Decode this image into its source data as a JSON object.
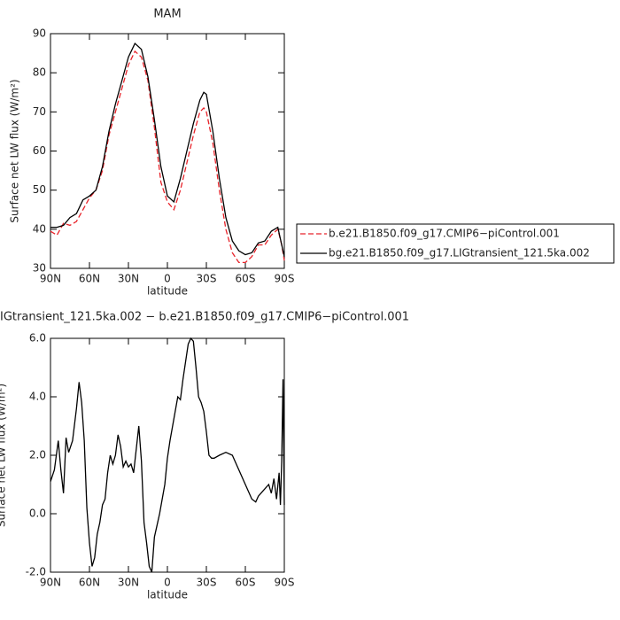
{
  "chart_data": [
    {
      "type": "line",
      "title": "MAM",
      "xlabel": "latitude",
      "ylabel": "Surface net LW flux (W/m²)",
      "xlim": [
        90,
        -90
      ],
      "xticks": [
        {
          "value": 90,
          "label": "90N"
        },
        {
          "value": 60,
          "label": "60N"
        },
        {
          "value": 30,
          "label": "30N"
        },
        0,
        {
          "value": -30,
          "label": "30S"
        },
        {
          "value": -60,
          "label": "60S"
        },
        {
          "value": -90,
          "label": "90S"
        }
      ],
      "ylim": [
        30,
        90
      ],
      "yticks": [
        30,
        40,
        50,
        60,
        70,
        80,
        90
      ],
      "legend": "right",
      "x": [
        90,
        85,
        80,
        75,
        70,
        65,
        60,
        55,
        50,
        45,
        40,
        35,
        30,
        25,
        20,
        15,
        10,
        5,
        0,
        -5,
        -10,
        -15,
        -20,
        -25,
        -28,
        -30,
        -35,
        -40,
        -45,
        -50,
        -55,
        -60,
        -65,
        -70,
        -75,
        -80,
        -85,
        -88,
        -90
      ],
      "series": [
        {
          "name": "b.e21.B1850.f09_g17.CMIP6−piControl.001",
          "color": "#e8232a",
          "dash": "dashed",
          "values": [
            39.5,
            38.5,
            41.5,
            41,
            42,
            45,
            48,
            50,
            55,
            64,
            70,
            76,
            82,
            85.5,
            84,
            78,
            66,
            52,
            47,
            45,
            50,
            57,
            64,
            70,
            71,
            70,
            62,
            50,
            40,
            34,
            31.5,
            31.5,
            33,
            36,
            36,
            38.5,
            40,
            36,
            32
          ]
        },
        {
          "name": "bg.e21.B1850.f09_g17.LIGtransient_121.5ka.002",
          "color": "#000000",
          "dash": "solid",
          "values": [
            40.5,
            40.5,
            41,
            43,
            44,
            47.5,
            48.5,
            50,
            56,
            65,
            72,
            78,
            84,
            87.5,
            86,
            79,
            68,
            56,
            48.5,
            47,
            53,
            60,
            67,
            73,
            75,
            74.5,
            65,
            53,
            43,
            37,
            34.5,
            33.5,
            34,
            36.5,
            37,
            39.5,
            40.5,
            36,
            33
          ]
        }
      ]
    },
    {
      "type": "line",
      "title": "IGtransient_121.5ka.002 − b.e21.B1850.f09_g17.CMIP6−piControl.001",
      "xlabel": "latitude",
      "ylabel": "Surface net LW flux (W/m²)",
      "xlim": [
        90,
        -90
      ],
      "xticks": [
        {
          "value": 90,
          "label": "90N"
        },
        {
          "value": 60,
          "label": "60N"
        },
        {
          "value": 30,
          "label": "30N"
        },
        0,
        {
          "value": -30,
          "label": "30S"
        },
        {
          "value": -60,
          "label": "60S"
        },
        {
          "value": -90,
          "label": "90S"
        }
      ],
      "ylim": [
        -2,
        6
      ],
      "yticks": [
        {
          "value": -2,
          "label": "-2.0"
        },
        {
          "value": 0,
          "label": "0.0"
        },
        {
          "value": 2,
          "label": "2.0"
        },
        {
          "value": 4,
          "label": "4.0"
        },
        {
          "value": 6,
          "label": "6.0"
        }
      ],
      "color": "#000000",
      "x": [
        90,
        87,
        84,
        82,
        80,
        78,
        76,
        73,
        70,
        68,
        66,
        64,
        62,
        60,
        58,
        56,
        54,
        52,
        50,
        48,
        46,
        44,
        42,
        40,
        38,
        36,
        34,
        32,
        30,
        28,
        26,
        24,
        22,
        20,
        18,
        16,
        14,
        12,
        10,
        8,
        6,
        4,
        2,
        0,
        -2,
        -4,
        -6,
        -8,
        -10,
        -12,
        -14,
        -16,
        -18,
        -20,
        -22,
        -24,
        -26,
        -28,
        -30,
        -32,
        -34,
        -36,
        -40,
        -45,
        -50,
        -55,
        -60,
        -65,
        -68,
        -70,
        -74,
        -78,
        -80,
        -82,
        -84,
        -86,
        -87,
        -88,
        -89,
        -90
      ],
      "values": [
        1.1,
        1.5,
        2.5,
        1.5,
        0.7,
        2.6,
        2.1,
        2.5,
        3.6,
        4.5,
        3.8,
        2.5,
        0.2,
        -1.0,
        -1.8,
        -1.5,
        -0.7,
        -0.3,
        0.3,
        0.5,
        1.4,
        2.0,
        1.7,
        2.0,
        2.7,
        2.3,
        1.6,
        1.8,
        1.6,
        1.7,
        1.4,
        2.2,
        3.0,
        1.8,
        -0.3,
        -1.0,
        -1.8,
        -2.0,
        -0.8,
        -0.4,
        0.0,
        0.5,
        1.0,
        1.9,
        2.5,
        3.0,
        3.5,
        4.0,
        3.9,
        4.6,
        5.2,
        5.8,
        6.0,
        5.9,
        5.0,
        4.0,
        3.8,
        3.5,
        2.8,
        2.0,
        1.9,
        1.9,
        2.0,
        2.1,
        2.0,
        1.5,
        1.0,
        0.5,
        0.4,
        0.6,
        0.8,
        1.0,
        0.7,
        1.2,
        0.5,
        1.4,
        0.3,
        1.8,
        4.6,
        0.3
      ]
    }
  ]
}
